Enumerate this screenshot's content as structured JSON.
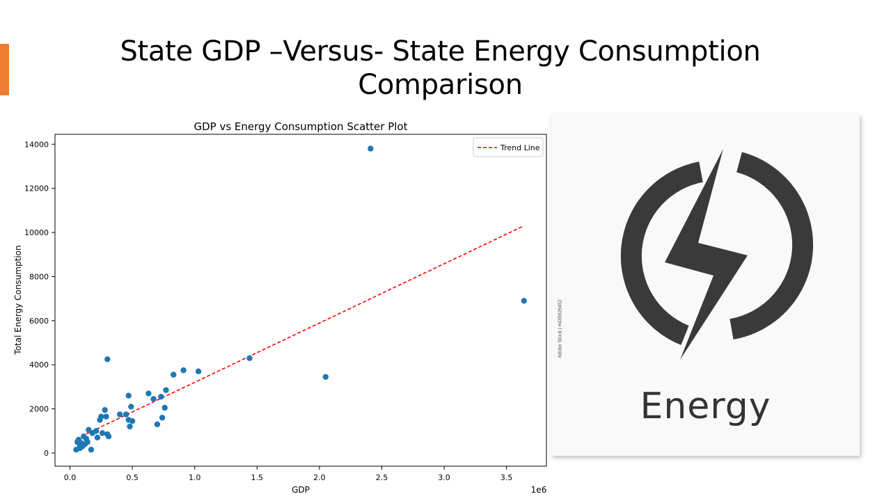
{
  "slide": {
    "title_line1": "State GDP –Versus- State Energy Consumption",
    "title_line2": "Comparison",
    "accent_color": "#ED7D31"
  },
  "image": {
    "word": "Energy",
    "credit": "Adobe Stock | #435626452",
    "icon": "lightning-bolt-in-circle-icon",
    "icon_color": "#3a3a3a"
  },
  "chart_data": {
    "type": "scatter",
    "title": "GDP vs Energy Consumption Scatter Plot",
    "xlabel": "GDP",
    "ylabel": "Total Energy Consumption",
    "x_offset_label": "1e6",
    "xlim": [
      -0.12,
      3.82
    ],
    "ylim": [
      -600,
      14450
    ],
    "xticks": [
      0.0,
      0.5,
      1.0,
      1.5,
      2.0,
      2.5,
      3.0,
      3.5
    ],
    "xtick_labels": [
      "0.0",
      "0.5",
      "1.0",
      "1.5",
      "2.0",
      "2.5",
      "3.0",
      "3.5"
    ],
    "yticks": [
      0,
      2000,
      4000,
      6000,
      8000,
      10000,
      12000,
      14000
    ],
    "ytick_labels": [
      "0",
      "2000",
      "4000",
      "6000",
      "8000",
      "10000",
      "12000",
      "14000"
    ],
    "grid": false,
    "legend_position": "top-right",
    "point_color": "#1f77b4",
    "trend_color": "#ff0000",
    "series": [
      {
        "values": [
          [
            0.05,
            150
          ],
          [
            0.06,
            500
          ],
          [
            0.07,
            600
          ],
          [
            0.08,
            350
          ],
          [
            0.08,
            220
          ],
          [
            0.09,
            450
          ],
          [
            0.1,
            300
          ],
          [
            0.11,
            750
          ],
          [
            0.12,
            400
          ],
          [
            0.13,
            650
          ],
          [
            0.14,
            500
          ],
          [
            0.15,
            1050
          ],
          [
            0.17,
            150
          ],
          [
            0.18,
            900
          ],
          [
            0.21,
            1000
          ],
          [
            0.22,
            700
          ],
          [
            0.24,
            1500
          ],
          [
            0.25,
            1650
          ],
          [
            0.26,
            900
          ],
          [
            0.28,
            1950
          ],
          [
            0.29,
            1650
          ],
          [
            0.3,
            850
          ],
          [
            0.3,
            4250
          ],
          [
            0.31,
            750
          ],
          [
            0.4,
            1750
          ],
          [
            0.45,
            1750
          ],
          [
            0.47,
            2600
          ],
          [
            0.47,
            1500
          ],
          [
            0.48,
            1200
          ],
          [
            0.49,
            2100
          ],
          [
            0.5,
            1450
          ],
          [
            0.63,
            2700
          ],
          [
            0.67,
            2450
          ],
          [
            0.7,
            1300
          ],
          [
            0.73,
            2550
          ],
          [
            0.74,
            1600
          ],
          [
            0.76,
            2050
          ],
          [
            0.77,
            2850
          ],
          [
            0.83,
            3550
          ],
          [
            0.91,
            3750
          ],
          [
            1.03,
            3700
          ],
          [
            1.44,
            4300
          ],
          [
            2.05,
            3450
          ],
          [
            2.41,
            13800
          ],
          [
            3.64,
            6900
          ]
        ]
      }
    ],
    "trend_line": {
      "name": "Trend Line",
      "x": [
        0.05,
        3.64
      ],
      "y": [
        650,
        10300
      ]
    }
  }
}
